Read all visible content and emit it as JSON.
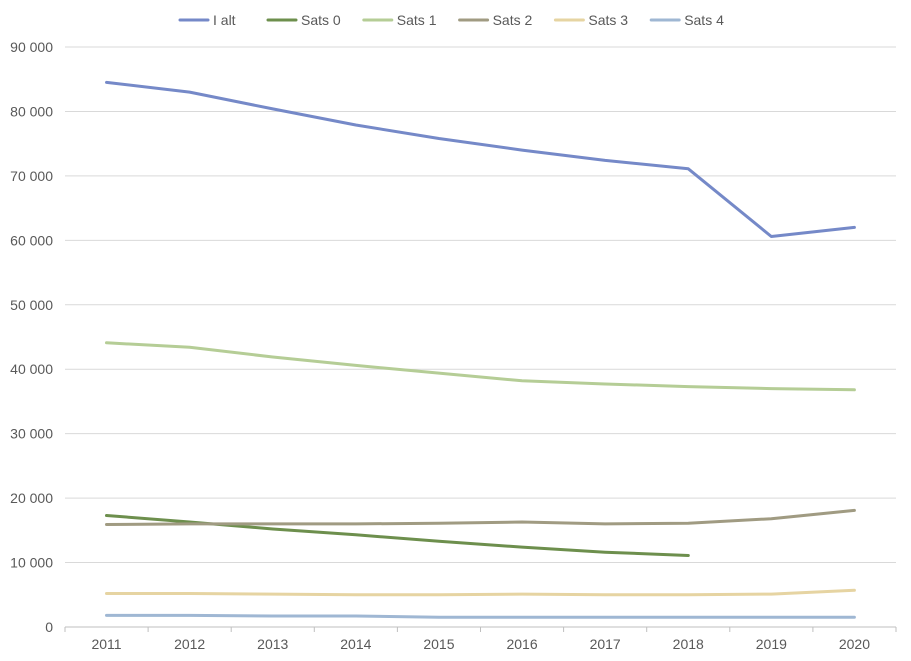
{
  "chart_data": {
    "type": "line",
    "title": "",
    "xlabel": "",
    "ylabel": "",
    "ylim": [
      0,
      90000
    ],
    "yticks": [
      0,
      10000,
      20000,
      30000,
      40000,
      50000,
      60000,
      70000,
      80000,
      90000
    ],
    "ytick_labels": [
      "0",
      "10 000",
      "20 000",
      "30 000",
      "40 000",
      "50 000",
      "60 000",
      "70 000",
      "80 000",
      "90 000"
    ],
    "categories": [
      "2011",
      "2012",
      "2013",
      "2014",
      "2015",
      "2016",
      "2017",
      "2018",
      "2019",
      "2020"
    ],
    "grid": "horizontal",
    "legend_position": "top",
    "series": [
      {
        "name": "I alt",
        "color": "#7589c8",
        "values": [
          84500,
          83000,
          80400,
          77900,
          75800,
          74000,
          72400,
          71100,
          60600,
          62000
        ]
      },
      {
        "name": "Sats 0",
        "color": "#6d8f4d",
        "values": [
          17300,
          16300,
          15200,
          14300,
          13300,
          12400,
          11600,
          11100,
          null,
          null
        ]
      },
      {
        "name": "Sats 1",
        "color": "#b5cd96",
        "values": [
          44100,
          43400,
          41900,
          40600,
          39400,
          38200,
          37700,
          37300,
          37000,
          36800
        ]
      },
      {
        "name": "Sats 2",
        "color": "#a09b82",
        "values": [
          15900,
          16000,
          16000,
          16000,
          16100,
          16300,
          16000,
          16100,
          16800,
          18100
        ]
      },
      {
        "name": "Sats 3",
        "color": "#e6d4a2",
        "values": [
          5200,
          5200,
          5100,
          5000,
          5000,
          5100,
          5000,
          5000,
          5100,
          5700
        ]
      },
      {
        "name": "Sats 4",
        "color": "#9fb7d3",
        "values": [
          1800,
          1800,
          1700,
          1700,
          1500,
          1500,
          1500,
          1500,
          1500,
          1500
        ]
      }
    ]
  }
}
